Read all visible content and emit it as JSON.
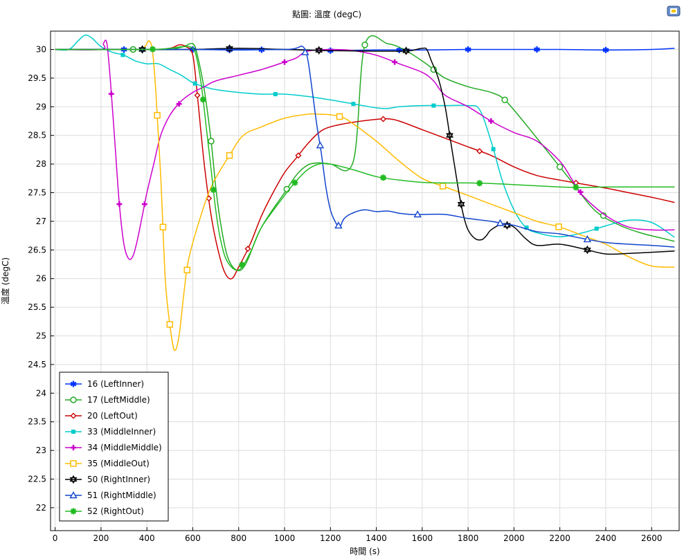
{
  "chart_data": {
    "type": "line",
    "title": "點圖: 溫度 (degC)",
    "xlabel": "時間 (s)",
    "ylabel": "溫度 (degC)",
    "xlim": [
      -20,
      2720
    ],
    "ylim": [
      21.6,
      30.32
    ],
    "x_ticks": [
      0,
      200,
      400,
      600,
      800,
      1000,
      1200,
      1400,
      1600,
      1800,
      2000,
      2200,
      2400,
      2600
    ],
    "y_ticks": [
      22,
      22.5,
      23,
      23.5,
      24,
      24.5,
      25,
      25.5,
      26,
      26.5,
      27,
      27.5,
      28,
      28.5,
      29,
      29.5,
      30
    ],
    "y_tick_labels": [
      "22",
      "22.5",
      "23",
      "23.5",
      "24",
      "24.5",
      "25",
      "25.5",
      "26",
      "26.5",
      "27",
      "27.5",
      "28",
      "28.5",
      "29",
      "29.5",
      "30"
    ],
    "grid": true,
    "legend_position": "bottom-left",
    "series": [
      {
        "name": "16 (LeftInner)",
        "color": "#0033ff",
        "marker": "star",
        "x": [
          0,
          200,
          400,
          600,
          800,
          1000,
          1200,
          1400,
          1600,
          1800,
          2000,
          2200,
          2400,
          2600,
          2700
        ],
        "y": [
          30,
          30,
          30,
          30,
          29.99,
          30,
          29.98,
          29.99,
          29.99,
          30,
          30,
          30,
          29.99,
          30,
          30.02
        ],
        "markers_x": [
          300,
          380,
          600,
          760,
          900,
          1200,
          1500,
          1800,
          2100,
          2400
        ]
      },
      {
        "name": "17 (LeftMiddle)",
        "color": "#22aa22",
        "marker": "circle",
        "x": [
          0,
          300,
          400,
          500,
          560,
          600,
          620,
          650,
          680,
          700,
          720,
          750,
          790,
          830,
          900,
          1000,
          1050,
          1100,
          1150,
          1200,
          1300,
          1350,
          1450,
          1520,
          1600,
          1650,
          1700,
          1800,
          1900,
          1960,
          2050,
          2150,
          2250,
          2350,
          2450,
          2550,
          2650,
          2700
        ],
        "y": [
          30,
          30,
          30,
          30,
          30.05,
          30.1,
          29.9,
          29.3,
          28.4,
          27.6,
          27.0,
          26.4,
          26.15,
          26.25,
          26.9,
          27.5,
          27.8,
          27.98,
          28.02,
          28,
          28.05,
          30.08,
          30.1,
          30.0,
          29.8,
          29.65,
          29.5,
          29.35,
          29.25,
          29.12,
          28.7,
          28.2,
          27.7,
          27.2,
          26.95,
          26.8,
          26.7,
          26.65
        ],
        "markers_x": [
          340,
          680,
          1010,
          1350,
          1650,
          1960,
          2200,
          2390
        ]
      },
      {
        "name": "20 (LeftOut)",
        "color": "#cc0000",
        "marker": "diamond",
        "x": [
          0,
          400,
          500,
          540,
          570,
          600,
          620,
          650,
          680,
          710,
          740,
          770,
          800,
          850,
          900,
          950,
          1000,
          1050,
          1100,
          1150,
          1200,
          1300,
          1400,
          1450,
          1500,
          1600,
          1700,
          1800,
          1900,
          2000,
          2100,
          2200,
          2300,
          2400,
          2500,
          2600,
          2700
        ],
        "y": [
          30,
          30,
          30.02,
          30.08,
          30.05,
          29.9,
          29.2,
          28.0,
          27.1,
          26.5,
          26.1,
          26.0,
          26.2,
          26.6,
          27.1,
          27.5,
          27.85,
          28.1,
          28.35,
          28.55,
          28.65,
          28.73,
          28.78,
          28.79,
          28.75,
          28.6,
          28.45,
          28.3,
          28.15,
          27.95,
          27.8,
          27.72,
          27.65,
          27.58,
          27.5,
          27.42,
          27.33
        ],
        "markers_x": [
          620,
          670,
          840,
          1060,
          1430,
          1850,
          2270
        ]
      },
      {
        "name": "33 (MiddleInner)",
        "color": "#00cccc",
        "marker": "square",
        "x": [
          0,
          60,
          100,
          130,
          160,
          200,
          250,
          300,
          350,
          400,
          450,
          500,
          550,
          600,
          650,
          700,
          800,
          900,
          1000,
          1100,
          1200,
          1300,
          1400,
          1450,
          1500,
          1600,
          1700,
          1800,
          1850,
          1900,
          1950,
          2000,
          2050,
          2100,
          2200,
          2300,
          2400,
          2500,
          2600,
          2700
        ],
        "y": [
          30,
          30,
          30.15,
          30.25,
          30.2,
          30.05,
          29.95,
          29.9,
          29.8,
          29.75,
          29.75,
          29.65,
          29.55,
          29.42,
          29.35,
          29.3,
          29.25,
          29.22,
          29.22,
          29.18,
          29.12,
          29.05,
          28.98,
          28.97,
          29.0,
          29.02,
          29.02,
          29.02,
          28.95,
          28.4,
          27.7,
          27.2,
          26.9,
          26.8,
          26.73,
          26.8,
          26.92,
          27.02,
          26.98,
          26.72
        ],
        "markers_x": [
          295,
          610,
          960,
          1300,
          1650,
          1910,
          2055,
          2360
        ]
      },
      {
        "name": "34 (MiddleMiddle)",
        "color": "#cc00cc",
        "marker": "plus",
        "x": [
          0,
          200,
          210,
          225,
          240,
          260,
          280,
          300,
          320,
          340,
          360,
          380,
          400,
          430,
          460,
          500,
          550,
          600,
          650,
          700,
          800,
          900,
          1000,
          1050,
          1100,
          1200,
          1300,
          1400,
          1500,
          1600,
          1650,
          1700,
          1800,
          1900,
          2000,
          2100,
          2200,
          2250,
          2300,
          2400,
          2500,
          2600,
          2700
        ],
        "y": [
          30,
          30,
          30.1,
          30.12,
          29.5,
          28.4,
          27.3,
          26.6,
          26.35,
          26.4,
          26.7,
          27.1,
          27.5,
          28.0,
          28.5,
          28.85,
          29.1,
          29.25,
          29.35,
          29.45,
          29.55,
          29.65,
          29.78,
          29.85,
          29.97,
          30.0,
          29.98,
          29.9,
          29.75,
          29.6,
          29.45,
          29.2,
          29.0,
          28.75,
          28.55,
          28.4,
          28.05,
          27.75,
          27.45,
          27.1,
          26.9,
          26.85,
          26.85
        ],
        "markers_x": [
          245,
          280,
          390,
          540,
          1000,
          1480,
          1900,
          2290
        ]
      },
      {
        "name": "35 (MiddleOut)",
        "color": "#ffbb00",
        "marker": "square-open",
        "x": [
          0,
          350,
          390,
          410,
          425,
          440,
          460,
          480,
          500,
          520,
          540,
          560,
          580,
          620,
          680,
          760,
          820,
          900,
          1000,
          1100,
          1150,
          1200,
          1250,
          1300,
          1400,
          1500,
          1600,
          1700,
          1800,
          1900,
          2000,
          2100,
          2200,
          2300,
          2400,
          2500,
          2600,
          2700
        ],
        "y": [
          30,
          30,
          30.05,
          30.15,
          29.95,
          29.2,
          27.8,
          26.0,
          25.2,
          24.75,
          25.0,
          25.7,
          26.3,
          26.9,
          27.6,
          28.15,
          28.5,
          28.65,
          28.8,
          28.87,
          28.87,
          28.86,
          28.82,
          28.7,
          28.4,
          28.05,
          27.75,
          27.6,
          27.45,
          27.3,
          27.15,
          27.0,
          26.9,
          26.75,
          26.6,
          26.38,
          26.22,
          26.2
        ],
        "markers_x": [
          445,
          470,
          500,
          575,
          760,
          1240,
          1690,
          2195
        ]
      },
      {
        "name": "50 (RightInner)",
        "color": "#000000",
        "marker": "hexagram",
        "x": [
          0,
          400,
          600,
          800,
          1000,
          1200,
          1400,
          1500,
          1550,
          1600,
          1620,
          1640,
          1670,
          1700,
          1720,
          1740,
          1760,
          1780,
          1800,
          1830,
          1860,
          1880,
          1900,
          1950,
          2000,
          2050,
          2100,
          2200,
          2300,
          2400,
          2500,
          2600,
          2700
        ],
        "y": [
          30,
          30,
          30,
          30.02,
          30,
          29.98,
          29.97,
          29.97,
          29.98,
          30.02,
          30.0,
          29.8,
          29.5,
          29.0,
          28.5,
          28.0,
          27.5,
          27.1,
          26.85,
          26.7,
          26.68,
          26.75,
          26.85,
          26.95,
          26.9,
          26.7,
          26.58,
          26.6,
          26.52,
          26.43,
          26.44,
          26.46,
          26.48
        ],
        "markers_x": [
          380,
          760,
          1150,
          1530,
          1720,
          1770,
          1970,
          2320
        ]
      },
      {
        "name": "51 (RightMiddle)",
        "color": "#1144cc",
        "marker": "triangle",
        "x": [
          0,
          600,
          800,
          1000,
          1050,
          1080,
          1100,
          1120,
          1140,
          1160,
          1180,
          1200,
          1220,
          1240,
          1260,
          1300,
          1350,
          1400,
          1450,
          1500,
          1550,
          1600,
          1700,
          1800,
          1900,
          1950,
          2000,
          2100,
          2200,
          2300,
          2400,
          2500,
          2600,
          2700
        ],
        "y": [
          30,
          30,
          30,
          30,
          30.02,
          30.05,
          29.85,
          29.3,
          28.7,
          28.2,
          27.6,
          27.2,
          27.0,
          26.9,
          27.05,
          27.15,
          27.2,
          27.17,
          27.18,
          27.14,
          27.12,
          27.12,
          27.12,
          27.05,
          27.0,
          26.96,
          26.93,
          26.82,
          26.78,
          26.7,
          26.63,
          26.6,
          26.58,
          26.55
        ],
        "markers_x": [
          1090,
          1155,
          1235,
          1580,
          1940,
          2320
        ]
      },
      {
        "name": "52 (RightOut)",
        "color": "#22bb22",
        "marker": "asterisk",
        "x": [
          0,
          400,
          500,
          560,
          600,
          620,
          640,
          660,
          680,
          700,
          720,
          750,
          800,
          850,
          900,
          1000,
          1050,
          1100,
          1150,
          1200,
          1300,
          1400,
          1500,
          1600,
          1700,
          1800,
          1900,
          2000,
          2100,
          2200,
          2300,
          2400,
          2500,
          2600,
          2700
        ],
        "y": [
          30,
          30,
          30.02,
          30.05,
          30.02,
          29.8,
          29.3,
          28.6,
          27.9,
          27.2,
          26.7,
          26.3,
          26.15,
          26.45,
          26.9,
          27.45,
          27.7,
          27.9,
          28.0,
          28.0,
          27.9,
          27.78,
          27.72,
          27.68,
          27.67,
          27.67,
          27.66,
          27.64,
          27.62,
          27.6,
          27.59,
          27.6,
          27.6,
          27.6,
          27.6
        ],
        "markers_x": [
          425,
          645,
          690,
          815,
          1045,
          1430,
          1850,
          2270
        ]
      }
    ]
  },
  "toolbar": {
    "export_icon": "export-image-icon"
  }
}
